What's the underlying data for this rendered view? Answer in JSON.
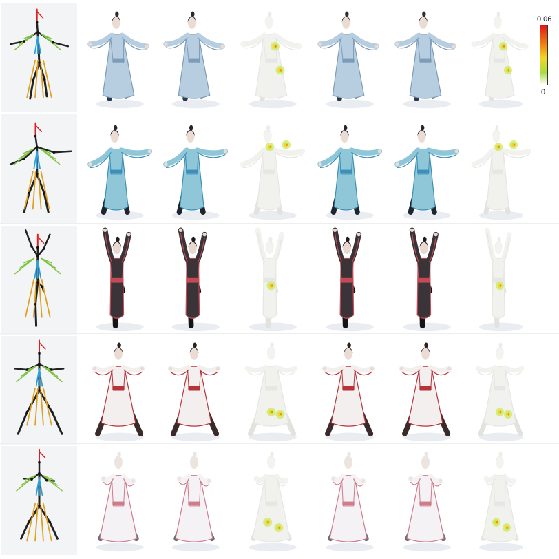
{
  "colorbar": {
    "max_label": "0.06",
    "min_label": "0",
    "colors": [
      "#e01818",
      "#f07a10",
      "#f2d628",
      "#a8dc40",
      "#ffffff"
    ]
  },
  "columns": [
    {
      "kind": "skeleton"
    },
    {
      "kind": "textured"
    },
    {
      "kind": "textured"
    },
    {
      "kind": "error"
    },
    {
      "kind": "textured"
    },
    {
      "kind": "textured"
    },
    {
      "kind": "error"
    }
  ],
  "rows": [
    {
      "pose": "arms-out-robe",
      "colors": {
        "robe": "#b7cde0",
        "trim": "#7e9bb8",
        "dark": "#2d3a4c",
        "hair": "#2a2c35",
        "skin": "#eadcd2"
      },
      "skeleton_colors": [
        "#e02020",
        "#2e9fd8",
        "#7fc241",
        "#e0a020",
        "#222222"
      ],
      "error_spots": [
        [
          0.62,
          0.62
        ],
        [
          0.55,
          0.4
        ]
      ]
    },
    {
      "pose": "leaning-lunge",
      "colors": {
        "robe": "#8fc7d8",
        "trim": "#3b8fb8",
        "dark": "#1f2530",
        "hair": "#23262e",
        "skin": "#eadcd2"
      },
      "skeleton_colors": [
        "#e02020",
        "#2e9fd8",
        "#7fc241",
        "#e0a020",
        "#222222"
      ],
      "error_spots": [
        [
          0.7,
          0.28
        ],
        [
          0.48,
          0.3
        ]
      ]
    },
    {
      "pose": "dancer-one-leg",
      "colors": {
        "robe": "#3a3438",
        "trim": "#c44a55",
        "dark": "#151416",
        "hair": "#1c1a1e",
        "skin": "#e8d8cf"
      },
      "skeleton_colors": [
        "#e02020",
        "#2e9fd8",
        "#7fc241",
        "#e0a020",
        "#222222"
      ],
      "error_spots": [
        [
          0.5,
          0.55
        ]
      ]
    },
    {
      "pose": "wide-stance-robe",
      "colors": {
        "robe": "#f2efee",
        "trim": "#b8323a",
        "dark": "#3a2a2a",
        "hair": "#2a2220",
        "skin": "#eadcd2"
      },
      "skeleton_colors": [
        "#e02020",
        "#2e9fd8",
        "#7fc241",
        "#e0a020",
        "#222222"
      ],
      "error_spots": [
        [
          0.5,
          0.7
        ],
        [
          0.62,
          0.72
        ]
      ]
    },
    {
      "pose": "seated-sword",
      "colors": {
        "robe": "#f4f2f4",
        "trim": "#d07a8a",
        "dark": "#6a6a78",
        "hair": "#e8e6ea",
        "skin": "#eee4de"
      },
      "skeleton_colors": [
        "#e02020",
        "#2e9fd8",
        "#7fc241",
        "#e0a020",
        "#222222"
      ],
      "error_spots": [
        [
          0.45,
          0.7
        ],
        [
          0.6,
          0.75
        ]
      ]
    }
  ]
}
